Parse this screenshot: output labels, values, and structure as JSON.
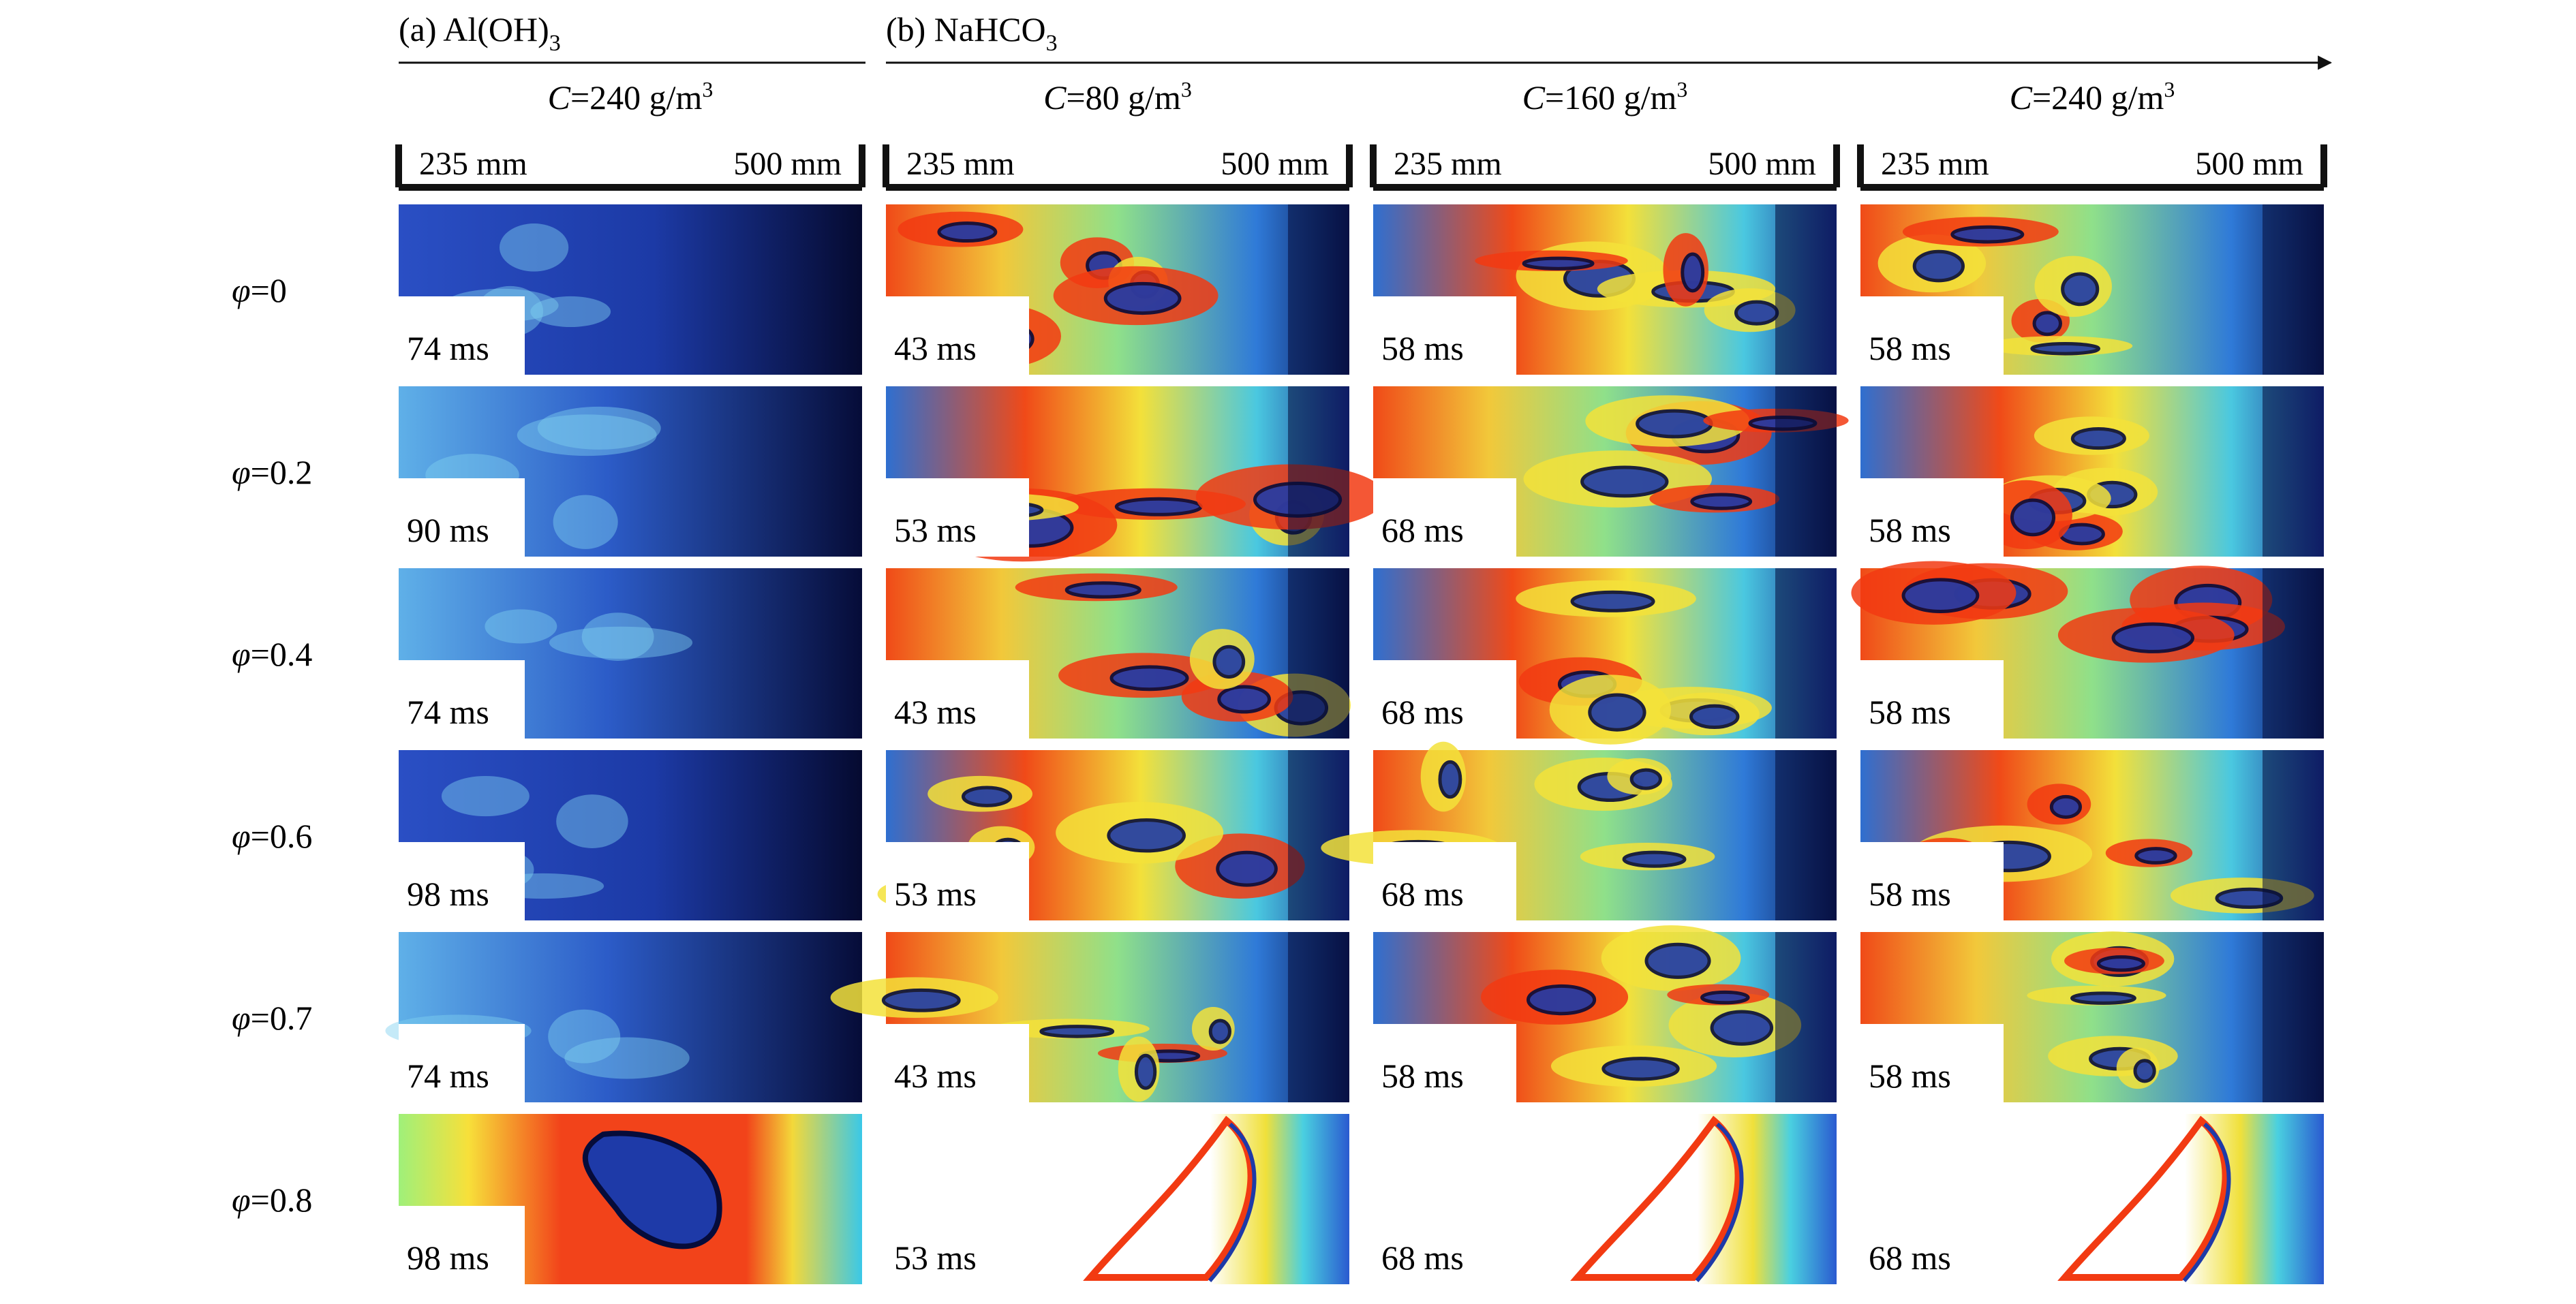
{
  "panel_a": {
    "label_pre": "(a) Al(OH)",
    "label_sub": "3"
  },
  "panel_b": {
    "label_pre": "(b) NaHCO",
    "label_sub": "3"
  },
  "concentration": {
    "var": "C",
    "unit": "g/m",
    "unit_sup": "3"
  },
  "columns": [
    {
      "panel": "a",
      "c_value": "=240"
    },
    {
      "panel": "b",
      "c_value": "=80"
    },
    {
      "panel": "b",
      "c_value": "=160"
    },
    {
      "panel": "b",
      "c_value": "=240"
    }
  ],
  "scale": {
    "left": "235 mm",
    "right": "500 mm"
  },
  "phi_symbol": "φ",
  "rows": [
    {
      "phi": "=0",
      "times": [
        "74 ms",
        "43 ms",
        "58 ms",
        "58 ms"
      ]
    },
    {
      "phi": "=0.2",
      "times": [
        "90 ms",
        "53 ms",
        "68 ms",
        "58 ms"
      ]
    },
    {
      "phi": "=0.4",
      "times": [
        "74 ms",
        "43 ms",
        "68 ms",
        "58 ms"
      ]
    },
    {
      "phi": "=0.6",
      "times": [
        "98 ms",
        "53 ms",
        "68 ms",
        "58 ms"
      ]
    },
    {
      "phi": "=0.7",
      "times": [
        "74 ms",
        "43 ms",
        "58 ms",
        "58 ms"
      ]
    },
    {
      "phi": "=0.8",
      "times": [
        "98 ms",
        "53 ms",
        "68 ms",
        "68 ms"
      ]
    }
  ],
  "colors": {
    "cold": "#1e3aa8",
    "dark": "#060c3a",
    "mid": "#3ad0e0",
    "warm": "#f3e23a",
    "hot": "#f23a12"
  }
}
